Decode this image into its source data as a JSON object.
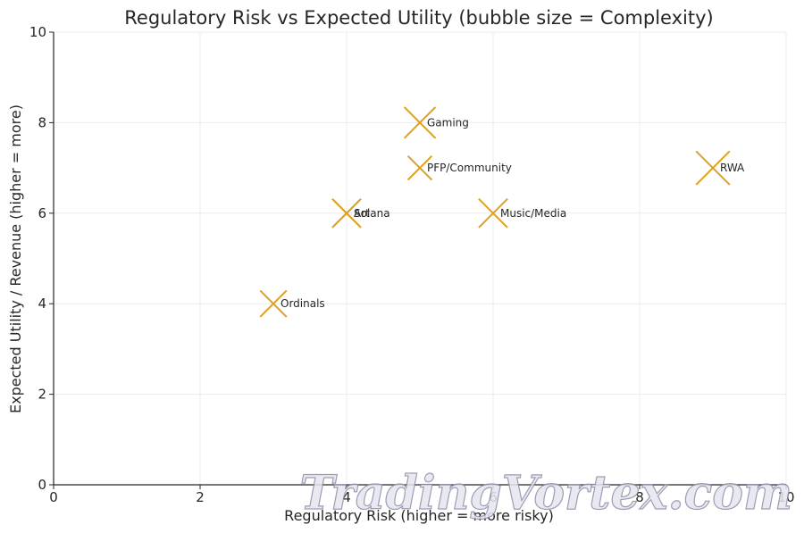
{
  "chart_data": {
    "type": "scatter",
    "title": "Regulatory Risk vs Expected Utility (bubble size = Complexity)",
    "xlabel": "Regulatory Risk (higher = more risky)",
    "ylabel": "Expected Utility / Revenue (higher = more)",
    "xlim": [
      0,
      10
    ],
    "ylim": [
      0,
      10
    ],
    "xticks": [
      0,
      2,
      4,
      6,
      8,
      10
    ],
    "yticks": [
      0,
      2,
      4,
      6,
      8,
      10
    ],
    "grid": true,
    "marker": "x",
    "marker_color": "#e0a020",
    "points": [
      {
        "label": "Gaming",
        "x": 5,
        "y": 8,
        "size": 7
      },
      {
        "label": "PFP/Community",
        "x": 5,
        "y": 7,
        "size": 4
      },
      {
        "label": "Art",
        "x": 4,
        "y": 6,
        "size": 6
      },
      {
        "label": "Solana",
        "x": 4,
        "y": 6,
        "size": 5
      },
      {
        "label": "Music/Media",
        "x": 6,
        "y": 6,
        "size": 6
      },
      {
        "label": "RWA",
        "x": 9,
        "y": 7,
        "size": 8
      },
      {
        "label": "Ordinals",
        "x": 3,
        "y": 4,
        "size": 5
      }
    ]
  },
  "watermark": {
    "text": "TradingVortex.com"
  }
}
